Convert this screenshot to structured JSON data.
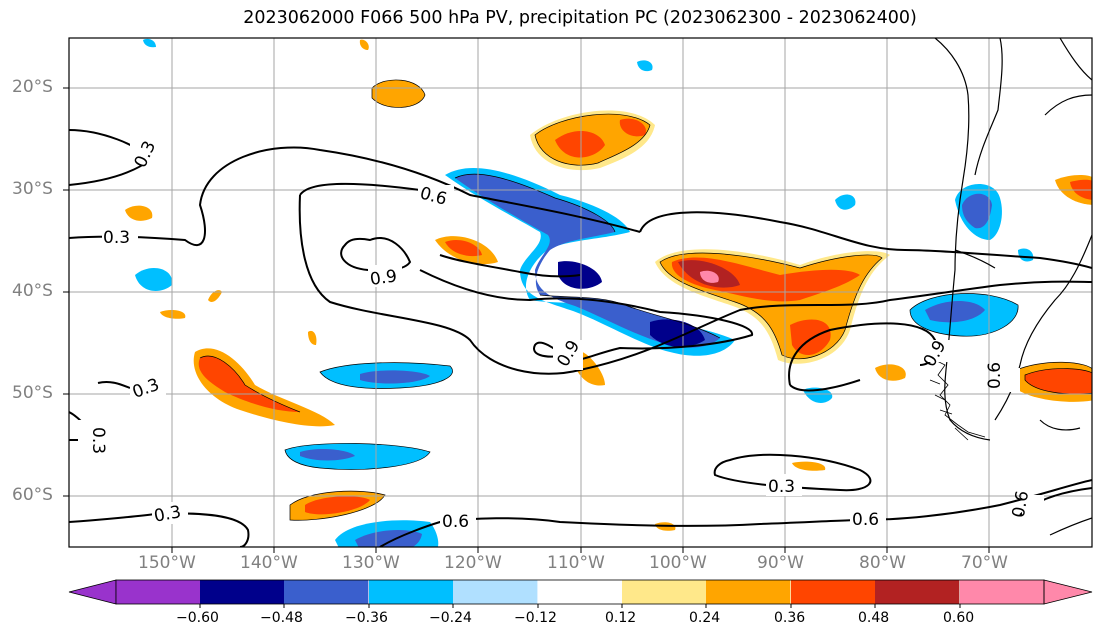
{
  "title": "2023062000 F066 500 hPa PV, precipitation PC (2023062300 - 2023062400)",
  "map": {
    "lat_labels": [
      "20°S",
      "30°S",
      "40°S",
      "50°S",
      "60°S"
    ],
    "lon_labels": [
      "150°W",
      "140°W",
      "130°W",
      "120°W",
      "110°W",
      "100°W",
      "90°W",
      "80°W",
      "70°W"
    ],
    "contour_labels": [
      "0.3",
      "0.6",
      "0.9",
      "0.3",
      "0.9",
      "0.9",
      "0.3",
      "0.3",
      "0.3",
      "0.6",
      "0.6",
      "0.6",
      "0.3",
      "0.6"
    ]
  },
  "colorbar": {
    "ticks": [
      "−0.60",
      "−0.48",
      "−0.36",
      "−0.24",
      "−0.12",
      "0.12",
      "0.24",
      "0.36",
      "0.48",
      "0.60"
    ],
    "colors": [
      "#9933cc",
      "#00008b",
      "#3a5fcd",
      "#00bfff",
      "#b0e0ff",
      "#ffffff",
      "#ffe88a",
      "#ffa500",
      "#ff4500",
      "#b22222",
      "#ff88aa"
    ]
  }
}
